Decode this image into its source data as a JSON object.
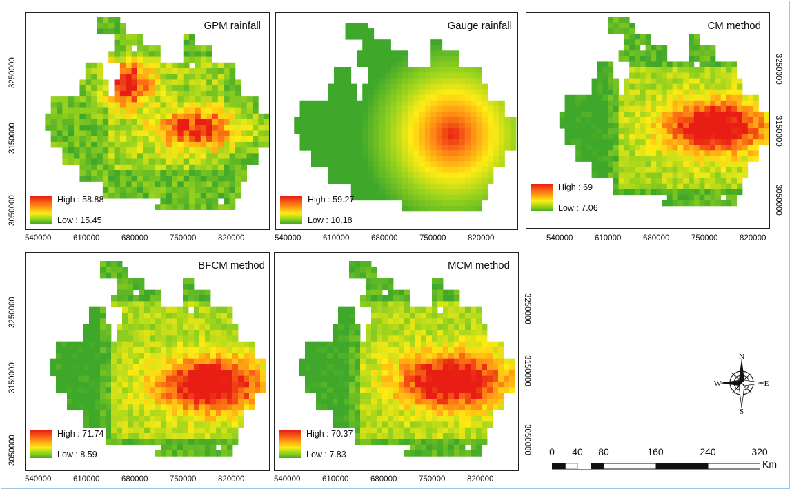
{
  "panels": [
    {
      "title": "GPM rainfall",
      "high": "High : 58.88",
      "low": "Low : 15.45"
    },
    {
      "title": "Gauge rainfall",
      "high": "High : 59.27",
      "low": "Low : 10.18"
    },
    {
      "title": "CM method",
      "high": "High : 69",
      "low": "Low : 7.06"
    },
    {
      "title": "BFCM method",
      "high": "High : 71.74",
      "low": "Low : 8.59"
    },
    {
      "title": "MCM method",
      "high": "High : 70.37",
      "low": "Low : 7.83"
    }
  ],
  "x_ticks": [
    "540000",
    "610000",
    "680000",
    "750000",
    "820000"
  ],
  "y_ticks": [
    "3250000",
    "3150000",
    "3050000"
  ],
  "compass": {
    "n": "N",
    "s": "S",
    "e": "E",
    "w": "W"
  },
  "scale_bar": {
    "labels": [
      "0",
      "40",
      "80",
      "160",
      "240",
      "320"
    ],
    "unit": "Km"
  },
  "legend_colors": {
    "high": "#e81e14",
    "mid": "#ffec14",
    "low": "#3fa82b"
  }
}
